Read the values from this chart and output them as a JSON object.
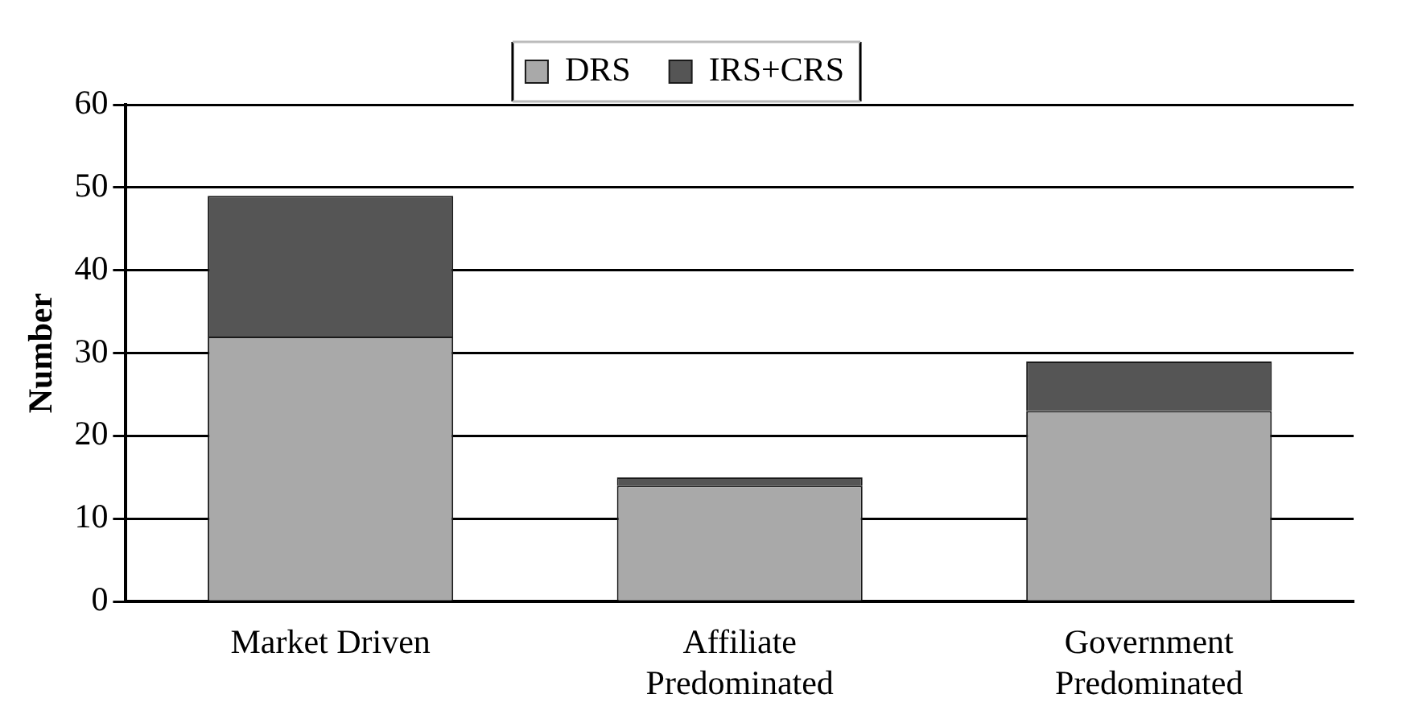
{
  "chart_data": {
    "type": "bar",
    "stacked": true,
    "ylabel": "Number",
    "categories": [
      "Market Driven",
      "Affiliate Predominated",
      "Government Predominated"
    ],
    "series": [
      {
        "name": "DRS",
        "color": "#a9a9a9",
        "values": [
          32,
          14,
          23
        ]
      },
      {
        "name": "IRS+CRS",
        "color": "#555555",
        "values": [
          17,
          1,
          6
        ]
      }
    ],
    "ylim": [
      0,
      60
    ],
    "yticks": [
      0,
      10,
      20,
      30,
      40,
      50,
      60
    ],
    "grid": "y",
    "legend": "top"
  }
}
